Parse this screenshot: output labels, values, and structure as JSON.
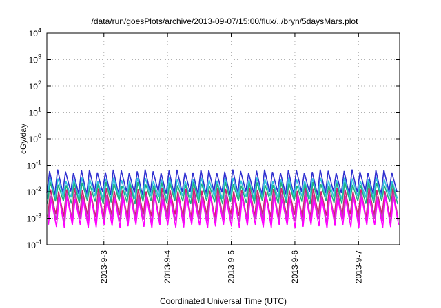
{
  "chart_data": {
    "type": "line",
    "title": "/data/run/goesPlots/archive/2013-09-07/15:00/flux/../bryn/5daysMars.plot",
    "xlabel": "Coordinated Universal Time (UTC)",
    "ylabel": "cGy/day",
    "yscale": "log",
    "ylim": [
      0.0001,
      10000
    ],
    "xlim": [
      "2013-09-02T02:30",
      "2013-09-07T15:30"
    ],
    "grid": true,
    "x_ticks": [
      "2013-9-3",
      "2013-9-4",
      "2013-9-5",
      "2013-9-6",
      "2013-9-7"
    ],
    "y_ticks": [
      {
        "base": "10",
        "exp": "-4"
      },
      {
        "base": "10",
        "exp": "-3"
      },
      {
        "base": "10",
        "exp": "-2"
      },
      {
        "base": "10",
        "exp": "-1"
      },
      {
        "base": "10",
        "exp": "0"
      },
      {
        "base": "10",
        "exp": "1"
      },
      {
        "base": "10",
        "exp": "2"
      },
      {
        "base": "10",
        "exp": "3"
      },
      {
        "base": "10",
        "exp": "4"
      }
    ],
    "pattern": {
      "period_hours": 3.0,
      "description_free": true
    },
    "series": [
      {
        "color": "#3030d0",
        "peak": 0.06,
        "trough": 0.009
      },
      {
        "color": "#30c0e0",
        "peak": 0.03,
        "trough": 0.006
      },
      {
        "color": "#20b080",
        "peak": 0.02,
        "trough": 0.004
      },
      {
        "color": "#d02070",
        "peak": 0.012,
        "trough": 0.0012
      },
      {
        "color": "#c040c0",
        "peak": 0.008,
        "trough": 0.0008
      },
      {
        "color": "#ff00ff",
        "peak": 0.006,
        "trough": 0.0005
      }
    ]
  }
}
